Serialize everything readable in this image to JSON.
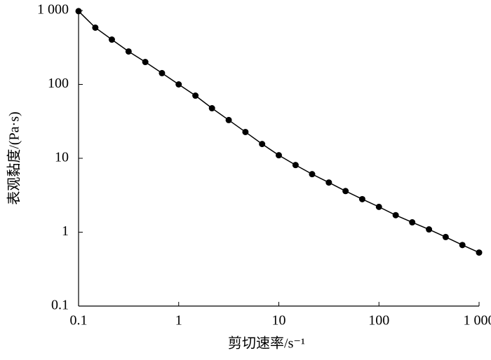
{
  "chart_data": {
    "type": "line",
    "x_label": "剪切速率/s⁻¹",
    "y_label": "表观黏度/(Pa·s)",
    "xscale": "log",
    "yscale": "log",
    "xlim": [
      0.1,
      1000
    ],
    "ylim": [
      0.1,
      1000
    ],
    "xticks": [
      0.1,
      1,
      10,
      100,
      {
        "value": 1000,
        "label": "1 000"
      }
    ],
    "yticks": [
      0.1,
      1,
      10,
      100,
      {
        "value": 1000,
        "label": "1 000"
      }
    ],
    "x": [
      0.1,
      0.147,
      0.215,
      0.316,
      0.464,
      0.681,
      1,
      1.47,
      2.15,
      3.16,
      4.64,
      6.81,
      10,
      14.7,
      21.5,
      31.6,
      46.4,
      68.1,
      100,
      147,
      215,
      316,
      464,
      681,
      1000
    ],
    "series": [
      {
        "color": "#000000",
        "values": [
          980,
          586,
          404,
          279,
          201,
          142,
          100,
          70.5,
          47.6,
          32.9,
          22.7,
          15.6,
          11.0,
          8.1,
          6.1,
          4.7,
          3.6,
          2.8,
          2.2,
          1.7,
          1.36,
          1.09,
          0.86,
          0.67,
          0.53
        ]
      }
    ]
  }
}
